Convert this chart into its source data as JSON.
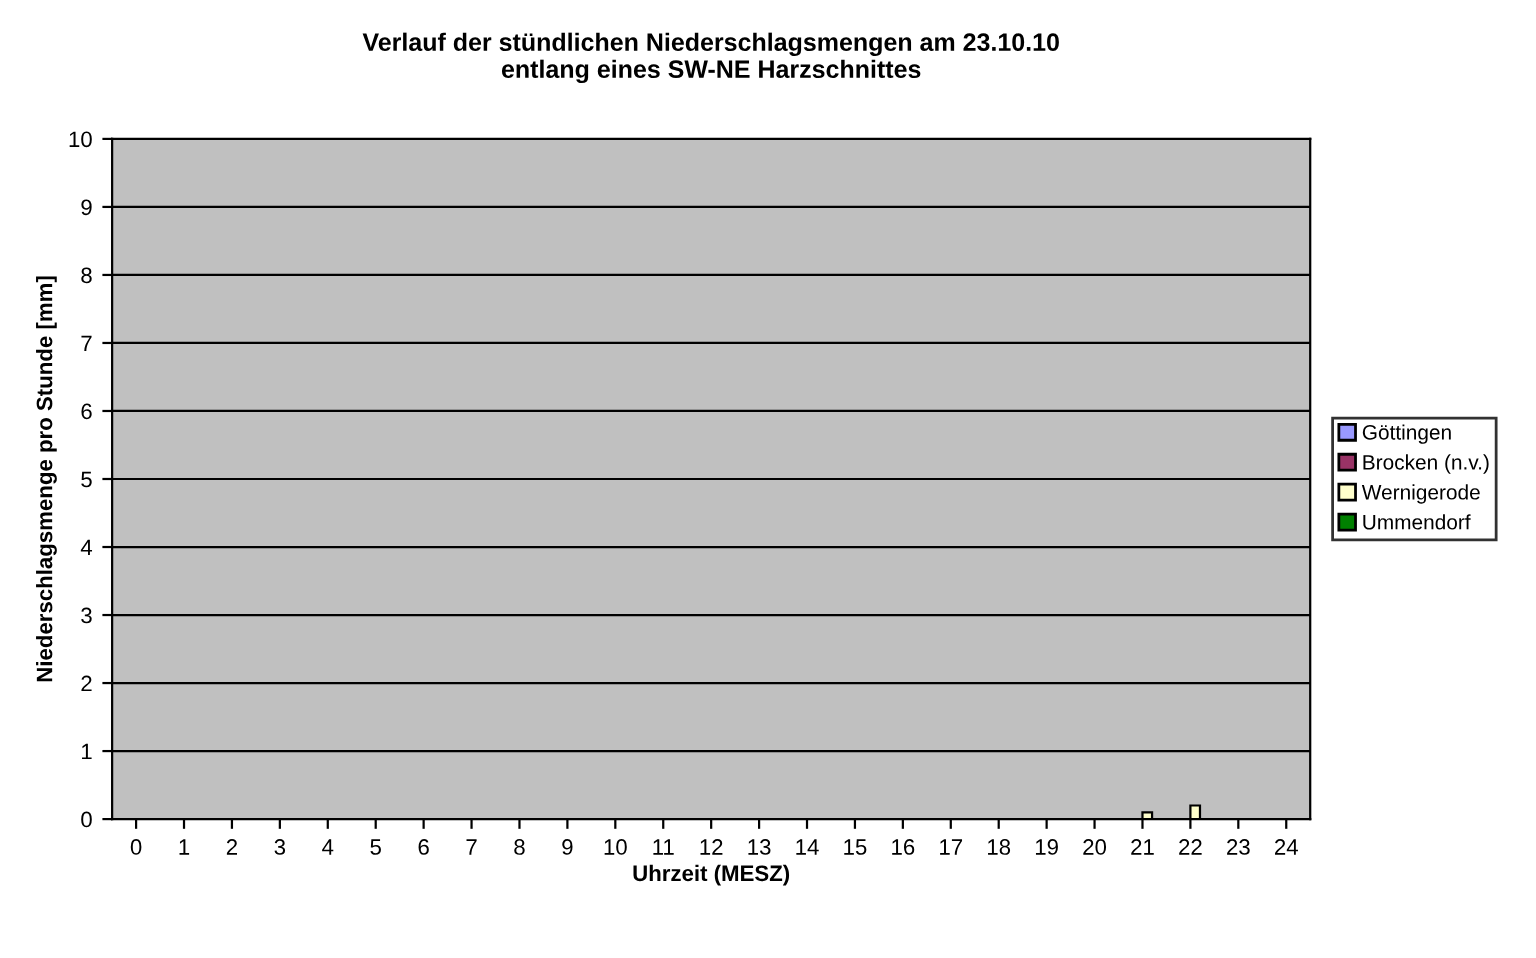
{
  "chart_data": {
    "type": "bar",
    "title": "Verlauf der stündlichen Niederschlagsmengen am 23.10.10\nentlang eines SW-NE Harzschnittes",
    "xlabel": "Uhrzeit (MESZ)",
    "ylabel": "Niederschlagsmenge pro Stunde [mm]",
    "categories": [
      "0",
      "1",
      "2",
      "3",
      "4",
      "5",
      "6",
      "7",
      "8",
      "9",
      "10",
      "11",
      "12",
      "13",
      "14",
      "15",
      "16",
      "17",
      "18",
      "19",
      "20",
      "21",
      "22",
      "23",
      "24"
    ],
    "series": [
      {
        "name": "Göttingen",
        "color": "#9999ff",
        "values": [
          0,
          0,
          0,
          0,
          0,
          0,
          0,
          0,
          0,
          0,
          0,
          0,
          0,
          0,
          0,
          0,
          0,
          0,
          0,
          0,
          0,
          0,
          0,
          0,
          0
        ]
      },
      {
        "name": "Brocken (n.v.)",
        "color": "#993366",
        "values": [
          null,
          null,
          null,
          null,
          null,
          null,
          null,
          null,
          null,
          null,
          null,
          null,
          null,
          null,
          null,
          null,
          null,
          null,
          null,
          null,
          null,
          null,
          null,
          null,
          null
        ]
      },
      {
        "name": "Wernigerode",
        "color": "#ffffcc",
        "values": [
          0,
          0,
          0,
          0,
          0,
          0,
          0,
          0,
          0,
          0,
          0,
          0,
          0,
          0,
          0,
          0,
          0,
          0,
          0,
          0,
          0,
          0.1,
          0.2,
          0,
          0
        ]
      },
      {
        "name": "Ummendorf",
        "color": "#008000",
        "values": [
          0,
          0,
          0,
          0,
          0,
          0,
          0,
          0,
          0,
          0,
          0,
          0,
          0,
          0,
          0,
          0,
          0,
          0,
          0,
          0,
          0,
          0,
          0,
          0,
          0
        ]
      }
    ],
    "ylim": [
      0,
      10
    ],
    "yticks": [
      0,
      1,
      2,
      3,
      4,
      5,
      6,
      7,
      8,
      9,
      10
    ],
    "grid": "y",
    "legend": "right"
  }
}
